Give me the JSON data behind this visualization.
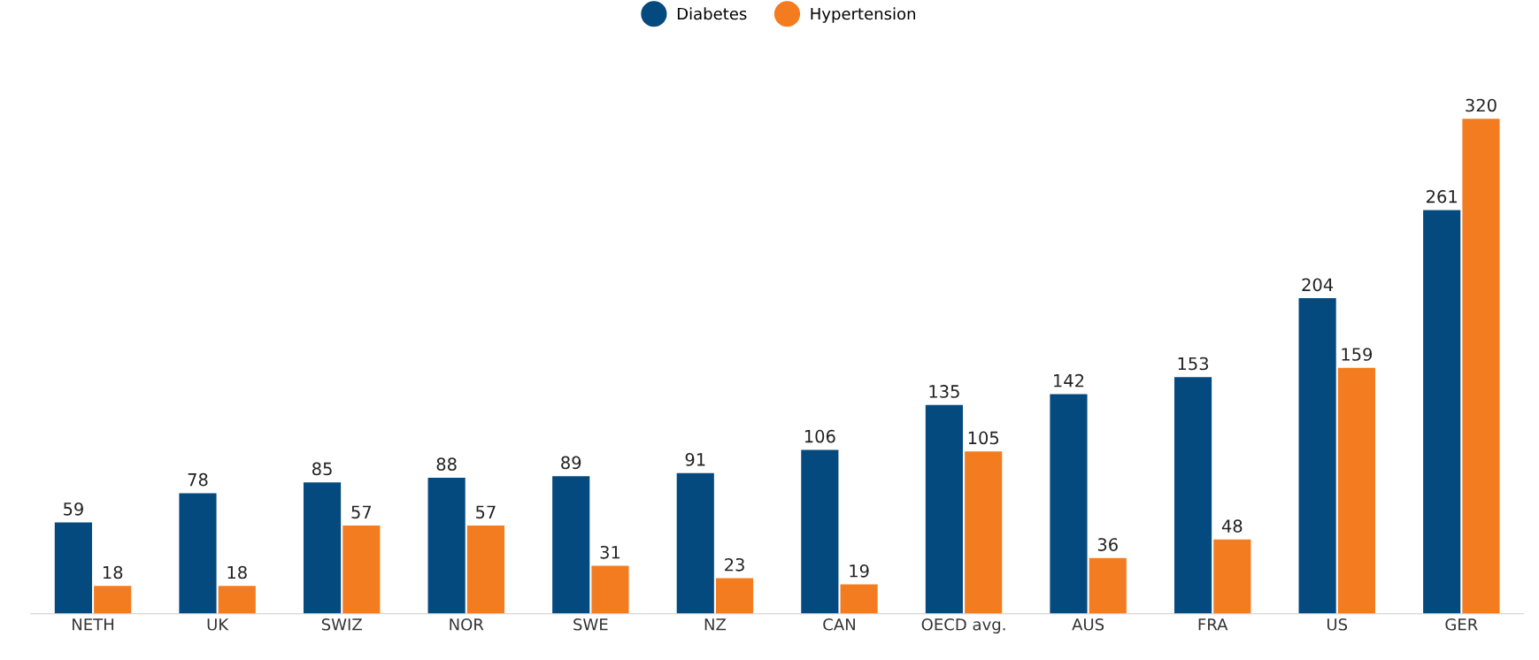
{
  "chart_data": {
    "type": "bar",
    "categories": [
      "NETH",
      "UK",
      "SWIZ",
      "NOR",
      "SWE",
      "NZ",
      "CAN",
      "OECD avg.",
      "AUS",
      "FRA",
      "US",
      "GER"
    ],
    "series": [
      {
        "name": "Diabetes",
        "color": "#054a7f",
        "values": [
          59,
          78,
          85,
          88,
          89,
          91,
          106,
          135,
          142,
          153,
          204,
          261
        ]
      },
      {
        "name": "Hypertension",
        "color": "#f47c20",
        "values": [
          18,
          18,
          57,
          57,
          31,
          23,
          19,
          105,
          36,
          48,
          159,
          320
        ]
      }
    ],
    "data_labels": true,
    "legend": "top",
    "grid": false,
    "tick_labels": "x"
  }
}
